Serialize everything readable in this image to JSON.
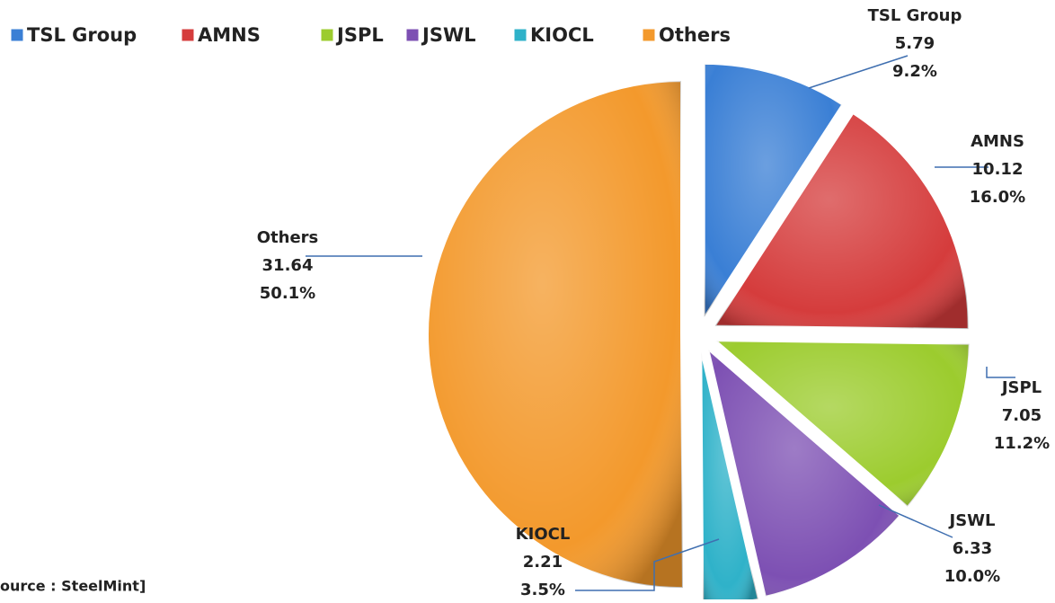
{
  "chart_data": {
    "type": "pie",
    "categories": [
      "TSL Group",
      "AMNS",
      "JSPL",
      "JSWL",
      "KIOCL",
      "Others"
    ],
    "values": [
      5.79,
      10.12,
      7.05,
      6.33,
      2.21,
      31.64
    ],
    "percentages": [
      9.2,
      16.0,
      11.2,
      10.0,
      3.5,
      50.1
    ],
    "percentage_labels": [
      "9.2%",
      "16.0%",
      "11.2%",
      "10.0%",
      "3.5%",
      "50.1%"
    ],
    "colors": [
      "#3a7fd5",
      "#d53c3c",
      "#9ccc2e",
      "#7d50b3",
      "#2fb2c9",
      "#f3992c"
    ],
    "legend": "top",
    "source": "ource : SteelMint]"
  }
}
